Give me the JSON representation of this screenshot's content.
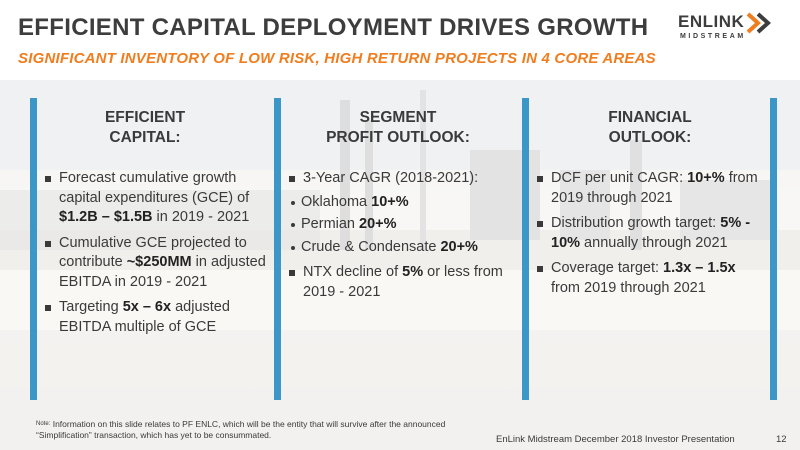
{
  "header": {
    "title": "EFFICIENT CAPITAL DEPLOYMENT DRIVES GROWTH",
    "subtitle": "SIGNIFICANT INVENTORY OF LOW RISK, HIGH RETURN PROJECTS IN 4 CORE AREAS",
    "logo_text": "ENLINK",
    "logo_sub": "MIDSTREAM"
  },
  "colors": {
    "accent_orange": "#f07d1e",
    "accent_blue": "#3b97c7",
    "text": "#3a3a3a"
  },
  "columns": [
    {
      "heading_line1": "EFFICIENT",
      "heading_line2": "CAPITAL:",
      "bullets": [
        {
          "t1": "Forecast cumulative growth capital expenditures (GCE) of ",
          "b1": "$1.2B – $1.5B",
          "t2": " in 2019 - 2021"
        },
        {
          "t1": "Cumulative GCE projected to contribute ",
          "b1": "~$250MM",
          "t2": " in adjusted EBITDA in 2019 - 2021"
        },
        {
          "t1": "Targeting ",
          "b1": "5x – 6x",
          "t2": " adjusted EBITDA multiple of GCE"
        }
      ]
    },
    {
      "heading_line1": "SEGMENT",
      "heading_line2": "PROFIT OUTLOOK:",
      "bullet1": "3-Year CAGR (2018-2021):",
      "sub_items": [
        {
          "label": "Oklahoma ",
          "value": "10+%"
        },
        {
          "label": "Permian ",
          "value": "20+%"
        },
        {
          "label": "Crude & Condensate ",
          "value": "20+%"
        }
      ],
      "bullet2": {
        "t1": "NTX decline of ",
        "b1": "5%",
        "t2": " or less from 2019 - 2021"
      }
    },
    {
      "heading_line1": "FINANCIAL",
      "heading_line2": "OUTLOOK:",
      "bullets": [
        {
          "t1": "DCF per unit CAGR: ",
          "b1": "10+%",
          "t2": " from 2019 through 2021"
        },
        {
          "t1": "Distribution growth target: ",
          "b1": "5% - 10%",
          "t2": " annually through 2021"
        },
        {
          "t1": "Coverage target: ",
          "b1": "1.3x – 1.5x",
          "t2": " from 2019 through 2021"
        }
      ]
    }
  ],
  "note_tag": "Note:",
  "note": "Information on this slide relates to PF ENLC, which will be the entity that will survive after the announced “Simplification” transaction, which has yet to be consummated.",
  "footer": "EnLink Midstream December 2018 Investor Presentation",
  "page_number": "12"
}
